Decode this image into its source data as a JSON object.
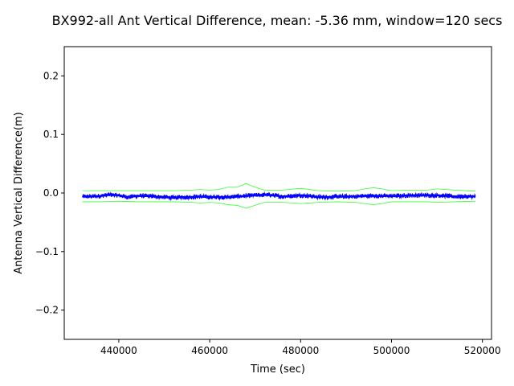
{
  "chart_data": {
    "type": "line",
    "title": "BX992-all Ant Vertical Difference, mean: -5.36 mm, window=120 secs",
    "xlabel": "Time (sec)",
    "ylabel": "Antenna Vertical Difference(m)",
    "xlim": [
      428000,
      522000
    ],
    "ylim": [
      -0.25,
      0.25
    ],
    "xticks": [
      440000,
      460000,
      480000,
      500000,
      520000
    ],
    "xtick_labels": [
      "440000",
      "460000",
      "480000",
      "500000",
      "520000"
    ],
    "yticks": [
      -0.2,
      -0.1,
      0.0,
      0.1,
      0.2
    ],
    "ytick_labels": [
      "−0.2",
      "−0.1",
      "0.0",
      "0.1",
      "0.2"
    ],
    "grid": false,
    "legend": "none",
    "x_range": [
      432000,
      518500
    ],
    "mean_series": {
      "color": "#0000ff",
      "x": [
        432000,
        434000,
        436000,
        438000,
        440000,
        442000,
        444000,
        446000,
        448000,
        450000,
        452000,
        454000,
        456000,
        458000,
        460000,
        462000,
        464000,
        466000,
        468000,
        470000,
        472000,
        474000,
        476000,
        478000,
        480000,
        482000,
        484000,
        486000,
        488000,
        490000,
        492000,
        494000,
        496000,
        498000,
        500000,
        502000,
        504000,
        506000,
        508000,
        510000,
        512000,
        514000,
        516000,
        518500
      ],
      "y": [
        -0.006,
        -0.006,
        -0.005,
        -0.003,
        -0.004,
        -0.007,
        -0.005,
        -0.005,
        -0.006,
        -0.007,
        -0.008,
        -0.007,
        -0.007,
        -0.006,
        -0.007,
        -0.007,
        -0.007,
        -0.006,
        -0.005,
        -0.004,
        -0.003,
        -0.004,
        -0.006,
        -0.005,
        -0.004,
        -0.005,
        -0.007,
        -0.007,
        -0.006,
        -0.006,
        -0.006,
        -0.005,
        -0.005,
        -0.005,
        -0.005,
        -0.005,
        -0.004,
        -0.004,
        -0.004,
        -0.004,
        -0.005,
        -0.006,
        -0.006,
        -0.006
      ],
      "noise_amplitude": 0.004
    },
    "upper_band": {
      "color": "#33ff33",
      "x": [
        432000,
        436000,
        440000,
        444000,
        448000,
        452000,
        456000,
        458000,
        460000,
        462000,
        464000,
        466000,
        468000,
        470000,
        472000,
        476000,
        480000,
        484000,
        488000,
        492000,
        494000,
        496000,
        498000,
        500000,
        504000,
        508000,
        510000,
        514000,
        518500
      ],
      "y": [
        0.004,
        0.004,
        0.004,
        0.004,
        0.004,
        0.004,
        0.005,
        0.006,
        0.005,
        0.006,
        0.01,
        0.01,
        0.016,
        0.01,
        0.005,
        0.005,
        0.008,
        0.004,
        0.003,
        0.004,
        0.007,
        0.009,
        0.007,
        0.004,
        0.005,
        0.005,
        0.007,
        0.005,
        0.003
      ]
    },
    "lower_band": {
      "color": "#33ff33",
      "x": [
        432000,
        436000,
        440000,
        444000,
        448000,
        452000,
        456000,
        458000,
        460000,
        462000,
        464000,
        466000,
        468000,
        470000,
        472000,
        476000,
        480000,
        484000,
        488000,
        492000,
        494000,
        496000,
        498000,
        500000,
        504000,
        508000,
        510000,
        514000,
        518500
      ],
      "y": [
        -0.015,
        -0.015,
        -0.014,
        -0.015,
        -0.015,
        -0.015,
        -0.016,
        -0.017,
        -0.016,
        -0.017,
        -0.02,
        -0.021,
        -0.026,
        -0.021,
        -0.016,
        -0.016,
        -0.018,
        -0.016,
        -0.015,
        -0.016,
        -0.018,
        -0.02,
        -0.018,
        -0.015,
        -0.015,
        -0.015,
        -0.016,
        -0.015,
        -0.014
      ]
    }
  }
}
